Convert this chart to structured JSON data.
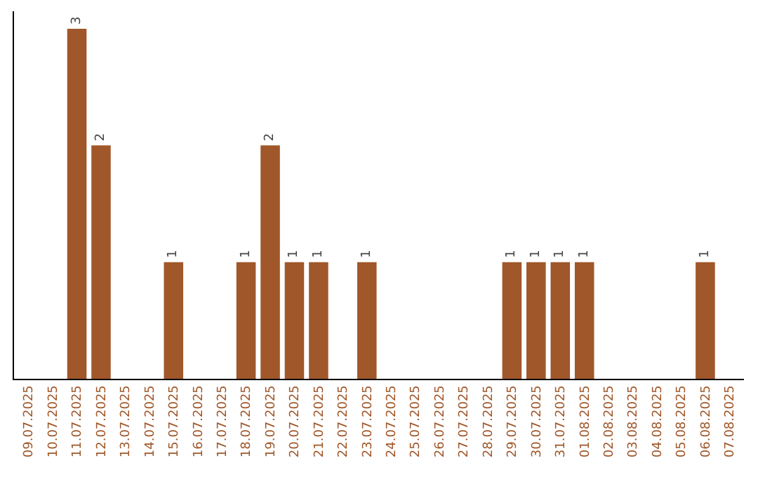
{
  "chart_data": {
    "type": "bar",
    "categories": [
      "09.07.2025",
      "10.07.2025",
      "11.07.2025",
      "12.07.2025",
      "13.07.2025",
      "14.07.2025",
      "15.07.2025",
      "16.07.2025",
      "17.07.2025",
      "18.07.2025",
      "19.07.2025",
      "20.07.2025",
      "21.07.2025",
      "22.07.2025",
      "23.07.2025",
      "24.07.2025",
      "25.07.2025",
      "26.07.2025",
      "27.07.2025",
      "28.07.2025",
      "29.07.2025",
      "30.07.2025",
      "31.07.2025",
      "01.08.2025",
      "02.08.2025",
      "03.08.2025",
      "04.08.2025",
      "05.08.2025",
      "06.08.2025",
      "07.08.2025"
    ],
    "values": [
      0,
      0,
      3,
      2,
      0,
      0,
      1,
      0,
      0,
      1,
      2,
      1,
      1,
      0,
      1,
      0,
      0,
      0,
      0,
      0,
      1,
      1,
      1,
      1,
      0,
      0,
      0,
      0,
      1,
      0
    ],
    "value_labels": [
      null,
      null,
      "3",
      "2",
      null,
      null,
      "1",
      null,
      null,
      "1",
      "2",
      "1",
      "1",
      null,
      "1",
      null,
      null,
      null,
      null,
      null,
      "1",
      "1",
      "1",
      "1",
      null,
      null,
      null,
      null,
      "1",
      null
    ],
    "color": "#a0572a",
    "tick_labels": "x"
  }
}
